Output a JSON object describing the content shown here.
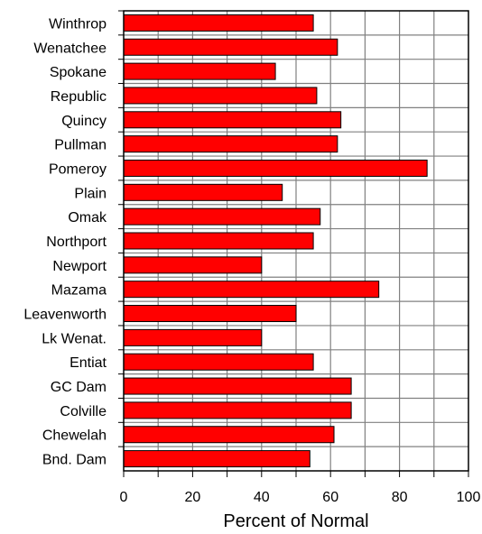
{
  "chart_data": {
    "type": "bar",
    "orientation": "horizontal",
    "categories": [
      "Winthrop",
      "Wenatchee",
      "Spokane",
      "Republic",
      "Quincy",
      "Pullman",
      "Pomeroy",
      "Plain",
      "Omak",
      "Northport",
      "Newport",
      "Mazama",
      "Leavenworth",
      "Lk Wenat.",
      "Entiat",
      "GC Dam",
      "Colville",
      "Chewelah",
      "Bnd. Dam"
    ],
    "values": [
      55,
      62,
      44,
      56,
      63,
      62,
      88,
      46,
      57,
      55,
      40,
      74,
      50,
      40,
      55,
      66,
      66,
      61,
      54
    ],
    "title": "",
    "xlabel": "Percent of Normal",
    "ylabel": "",
    "xlim": [
      0,
      100
    ],
    "xticks": [
      0,
      20,
      40,
      60,
      80,
      100
    ],
    "grid": true,
    "bar_color": "#ff0000",
    "bar_edge_color": "#000000",
    "grid_color": "#808080"
  }
}
